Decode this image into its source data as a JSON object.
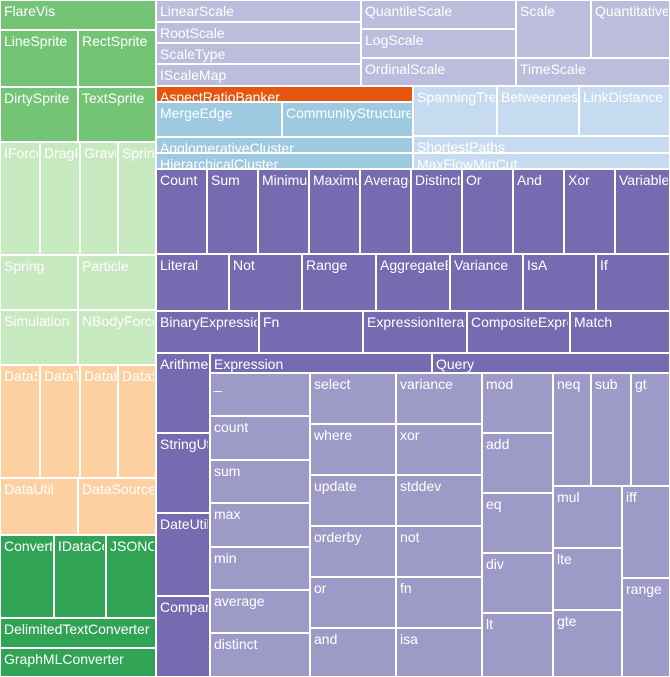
{
  "chart_data": {
    "type": "treemap",
    "title": "",
    "colors": {
      "display_light": "#c7e9c0",
      "display_mid": "#74c476",
      "display_dark": "#31a354",
      "util_peach": "#fdd0a2",
      "vis_dark": "#756bb1",
      "vis_mid": "#9e9ac8",
      "vis_light": "#bcbddc",
      "cluster_blue": "#9ecae1",
      "graph_light_blue": "#c6dbef",
      "highlight_orange": "#e6550d",
      "label_color": "#ffffff"
    },
    "cells": [
      {
        "label": "FlareVis",
        "color_key": "display_mid"
      },
      {
        "label": "LineSprite",
        "color_key": "display_mid"
      },
      {
        "label": "RectSprite",
        "color_key": "display_mid"
      },
      {
        "label": "DirtySprite",
        "color_key": "display_mid"
      },
      {
        "label": "TextSprite",
        "color_key": "display_mid"
      },
      {
        "label": "IForce",
        "color_key": "display_light"
      },
      {
        "label": "DragForce",
        "color_key": "display_light"
      },
      {
        "label": "GravityForce",
        "color_key": "display_light"
      },
      {
        "label": "SpringForce",
        "color_key": "display_light"
      },
      {
        "label": "Spring",
        "color_key": "display_light"
      },
      {
        "label": "Particle",
        "color_key": "display_light"
      },
      {
        "label": "Simulation",
        "color_key": "display_light"
      },
      {
        "label": "NBodyForce",
        "color_key": "display_light"
      },
      {
        "label": "DataSchema",
        "color_key": "util_peach"
      },
      {
        "label": "DataTable",
        "color_key": "util_peach"
      },
      {
        "label": "DataField",
        "color_key": "util_peach"
      },
      {
        "label": "DataSet",
        "color_key": "util_peach"
      },
      {
        "label": "DataUtil",
        "color_key": "util_peach"
      },
      {
        "label": "DataSource",
        "color_key": "util_peach"
      },
      {
        "label": "Converters",
        "color_key": "display_dark"
      },
      {
        "label": "IDataConverter",
        "color_key": "display_dark"
      },
      {
        "label": "JSONConverter",
        "color_key": "display_dark"
      },
      {
        "label": "DelimitedTextConverter",
        "color_key": "display_dark"
      },
      {
        "label": "GraphMLConverter",
        "color_key": "display_dark"
      },
      {
        "label": "LinearScale",
        "color_key": "vis_light"
      },
      {
        "label": "QuantileScale",
        "color_key": "vis_light"
      },
      {
        "label": "Scale",
        "color_key": "vis_light"
      },
      {
        "label": "QuantitativeScale",
        "color_key": "vis_light"
      },
      {
        "label": "RootScale",
        "color_key": "vis_light"
      },
      {
        "label": "ScaleType",
        "color_key": "vis_light"
      },
      {
        "label": "LogScale",
        "color_key": "vis_light"
      },
      {
        "label": "IScaleMap",
        "color_key": "vis_light"
      },
      {
        "label": "OrdinalScale",
        "color_key": "vis_light"
      },
      {
        "label": "TimeScale",
        "color_key": "vis_light"
      },
      {
        "label": "AspectRatioBanker",
        "color_key": "highlight_orange"
      },
      {
        "label": "MergeEdge",
        "color_key": "cluster_blue"
      },
      {
        "label": "CommunityStructure",
        "color_key": "cluster_blue"
      },
      {
        "label": "AgglomerativeCluster",
        "color_key": "cluster_blue"
      },
      {
        "label": "HierarchicalCluster",
        "color_key": "cluster_blue"
      },
      {
        "label": "SpanningTree",
        "color_key": "graph_light_blue"
      },
      {
        "label": "BetweennessCentrality",
        "color_key": "graph_light_blue"
      },
      {
        "label": "LinkDistance",
        "color_key": "graph_light_blue"
      },
      {
        "label": "ShortestPaths",
        "color_key": "graph_light_blue"
      },
      {
        "label": "MaxFlowMinCut",
        "color_key": "graph_light_blue"
      },
      {
        "label": "Count",
        "color_key": "vis_dark"
      },
      {
        "label": "Sum",
        "color_key": "vis_dark"
      },
      {
        "label": "Minimum",
        "color_key": "vis_dark"
      },
      {
        "label": "Maximum",
        "color_key": "vis_dark"
      },
      {
        "label": "Average",
        "color_key": "vis_dark"
      },
      {
        "label": "Distinct",
        "color_key": "vis_dark"
      },
      {
        "label": "Or",
        "color_key": "vis_dark"
      },
      {
        "label": "And",
        "color_key": "vis_dark"
      },
      {
        "label": "Xor",
        "color_key": "vis_dark"
      },
      {
        "label": "Variable",
        "color_key": "vis_dark"
      },
      {
        "label": "Literal",
        "color_key": "vis_dark"
      },
      {
        "label": "Not",
        "color_key": "vis_dark"
      },
      {
        "label": "Range",
        "color_key": "vis_dark"
      },
      {
        "label": "AggregateExpression",
        "color_key": "vis_dark"
      },
      {
        "label": "Variance",
        "color_key": "vis_dark"
      },
      {
        "label": "IsA",
        "color_key": "vis_dark"
      },
      {
        "label": "If",
        "color_key": "vis_dark"
      },
      {
        "label": "BinaryExpression",
        "color_key": "vis_dark"
      },
      {
        "label": "Fn",
        "color_key": "vis_dark"
      },
      {
        "label": "ExpressionIterator",
        "color_key": "vis_dark"
      },
      {
        "label": "CompositeExpression",
        "color_key": "vis_dark"
      },
      {
        "label": "Match",
        "color_key": "vis_dark"
      },
      {
        "label": "Arithmetic",
        "color_key": "vis_dark"
      },
      {
        "label": "Expression",
        "color_key": "vis_dark"
      },
      {
        "label": "Query",
        "color_key": "vis_dark"
      },
      {
        "label": "StringUtil",
        "color_key": "vis_dark"
      },
      {
        "label": "DateUtil",
        "color_key": "vis_dark"
      },
      {
        "label": "Comparison",
        "color_key": "vis_dark"
      },
      {
        "label": "_",
        "color_key": "vis_mid"
      },
      {
        "label": "count",
        "color_key": "vis_mid"
      },
      {
        "label": "sum",
        "color_key": "vis_mid"
      },
      {
        "label": "max",
        "color_key": "vis_mid"
      },
      {
        "label": "min",
        "color_key": "vis_mid"
      },
      {
        "label": "average",
        "color_key": "vis_mid"
      },
      {
        "label": "distinct",
        "color_key": "vis_mid"
      },
      {
        "label": "select",
        "color_key": "vis_mid"
      },
      {
        "label": "where",
        "color_key": "vis_mid"
      },
      {
        "label": "update",
        "color_key": "vis_mid"
      },
      {
        "label": "orderby",
        "color_key": "vis_mid"
      },
      {
        "label": "or",
        "color_key": "vis_mid"
      },
      {
        "label": "and",
        "color_key": "vis_mid"
      },
      {
        "label": "variance",
        "color_key": "vis_mid"
      },
      {
        "label": "xor",
        "color_key": "vis_mid"
      },
      {
        "label": "stddev",
        "color_key": "vis_mid"
      },
      {
        "label": "not",
        "color_key": "vis_mid"
      },
      {
        "label": "fn",
        "color_key": "vis_mid"
      },
      {
        "label": "isa",
        "color_key": "vis_mid"
      },
      {
        "label": "mod",
        "color_key": "vis_mid"
      },
      {
        "label": "add",
        "color_key": "vis_mid"
      },
      {
        "label": "eq",
        "color_key": "vis_mid"
      },
      {
        "label": "div",
        "color_key": "vis_mid"
      },
      {
        "label": "lt",
        "color_key": "vis_mid"
      },
      {
        "label": "neq",
        "color_key": "vis_mid"
      },
      {
        "label": "sub",
        "color_key": "vis_mid"
      },
      {
        "label": "gt",
        "color_key": "vis_mid"
      },
      {
        "label": "mul",
        "color_key": "vis_mid"
      },
      {
        "label": "iff",
        "color_key": "vis_mid"
      },
      {
        "label": "lte",
        "color_key": "vis_mid"
      },
      {
        "label": "range",
        "color_key": "vis_mid"
      },
      {
        "label": "gte",
        "color_key": "vis_mid"
      }
    ]
  }
}
